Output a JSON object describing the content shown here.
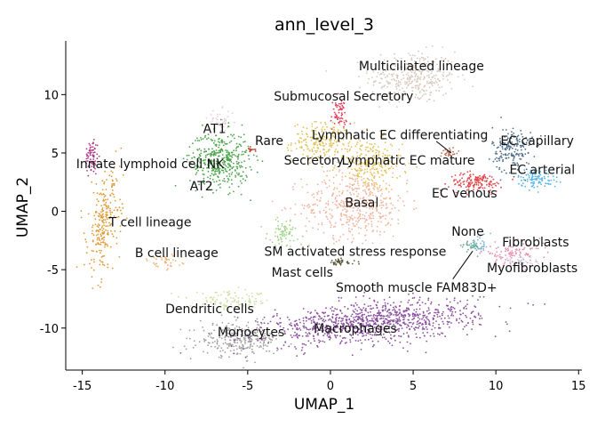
{
  "chart_data": {
    "type": "scatter",
    "title": "ann_level_3",
    "xlabel": "UMAP_1",
    "ylabel": "UMAP_2",
    "xlim": [
      -16,
      15.2
    ],
    "ylim": [
      -13.6,
      14.6
    ],
    "xticks": [
      -15,
      -10,
      -5,
      0,
      5,
      10,
      15
    ],
    "yticks": [
      -10,
      -5,
      0,
      5,
      10
    ],
    "xtick_labels": [
      "-15",
      "-10",
      "-5",
      "0",
      "5",
      "10",
      "15"
    ],
    "ytick_labels": [
      "-10",
      "-5",
      "0",
      "5",
      "10"
    ],
    "grid": false,
    "legend": "none",
    "clusters": [
      {
        "label": "Multiciliated lineage",
        "color": "#d8c9bc",
        "x": 5.0,
        "y": 11.5,
        "sx": 1.3,
        "sy": 1.1,
        "n": 350
      },
      {
        "label": "Submucosal Secretory",
        "color": "#e03b5a",
        "x": 0.5,
        "y": 8.3,
        "sx": 0.25,
        "sy": 0.7,
        "n": 60
      },
      {
        "label": "Secretory",
        "color": "#e3c25a",
        "x": -0.5,
        "y": 6.0,
        "sx": 0.9,
        "sy": 0.8,
        "n": 200
      },
      {
        "label": "Lymphatic EC mature",
        "color": "#e3c25a",
        "x": 2.3,
        "y": 4.0,
        "sx": 1.0,
        "sy": 1.1,
        "n": 250
      },
      {
        "label": "Lymphatic EC differentiating",
        "color": "#b8735a",
        "x": 7.2,
        "y": 5.0,
        "sx": 0.25,
        "sy": 0.25,
        "n": 30
      },
      {
        "label": "Basal",
        "color": "#f2b49f",
        "x": 1.5,
        "y": 0.5,
        "sx": 1.6,
        "sy": 1.4,
        "n": 450
      },
      {
        "label": "Rare",
        "color": "#c0392b",
        "x": -4.8,
        "y": 5.3,
        "sx": 0.12,
        "sy": 0.12,
        "n": 12
      },
      {
        "label": "AT1",
        "color": "#e8d0d8",
        "x": -6.6,
        "y": 7.7,
        "sx": 0.4,
        "sy": 0.5,
        "n": 40
      },
      {
        "label": "AT2",
        "color": "#4ca64c",
        "x": -6.7,
        "y": 4.4,
        "sx": 0.9,
        "sy": 1.2,
        "n": 400
      },
      {
        "label": "EC capillary",
        "color": "#4f6f8a",
        "x": 11.0,
        "y": 5.3,
        "sx": 0.6,
        "sy": 1.0,
        "n": 180
      },
      {
        "label": "EC arterial",
        "color": "#58b5e8",
        "x": 12.5,
        "y": 2.8,
        "sx": 0.6,
        "sy": 0.4,
        "n": 100
      },
      {
        "label": "EC venous",
        "color": "#e04848",
        "x": 8.8,
        "y": 2.5,
        "sx": 0.8,
        "sy": 0.4,
        "n": 150
      },
      {
        "label": "Innate lymphoid cell NK",
        "color": "#b03a8a",
        "x": -14.4,
        "y": 4.7,
        "sx": 0.2,
        "sy": 0.8,
        "n": 70
      },
      {
        "label": "T cell lineage",
        "color": "#e09a35",
        "x": -13.7,
        "y": -1.0,
        "sx": 0.45,
        "sy": 2.2,
        "n": 260
      },
      {
        "label": "B cell lineage",
        "color": "#f0b37a",
        "x": -10.2,
        "y": -4.3,
        "sx": 0.6,
        "sy": 0.3,
        "n": 40
      },
      {
        "label": "SM activated stress response",
        "color": "#9fd48a",
        "x": -2.8,
        "y": -1.8,
        "sx": 0.5,
        "sy": 0.6,
        "n": 70
      },
      {
        "label": "Mast cells",
        "color": "#5a5a3a",
        "x": 0.5,
        "y": -4.4,
        "sx": 0.5,
        "sy": 0.15,
        "n": 40
      },
      {
        "label": "None",
        "color": "#7fb6d6",
        "x": 9.0,
        "y": -2.8,
        "sx": 0.35,
        "sy": 0.4,
        "n": 40
      },
      {
        "label": "Fibroblasts",
        "color": "#e890b0",
        "x": 11.0,
        "y": -3.6,
        "sx": 0.9,
        "sy": 0.45,
        "n": 110
      },
      {
        "label": "Myofibroblasts",
        "color": "#cfcfe0",
        "x": 11.6,
        "y": -4.4,
        "sx": 0.6,
        "sy": 0.25,
        "n": 40
      },
      {
        "label": "Smooth muscle FAM83D+",
        "color": "#6aaa88",
        "x": 8.4,
        "y": -3.0,
        "sx": 0.3,
        "sy": 0.25,
        "n": 25
      },
      {
        "label": "Dendritic cells",
        "color": "#cce0a0",
        "x": -6.0,
        "y": -7.7,
        "sx": 1.2,
        "sy": 0.4,
        "n": 100
      },
      {
        "label": "Monocytes",
        "color": "#a0a0a0",
        "x": -5.5,
        "y": -11.0,
        "sx": 1.2,
        "sy": 0.7,
        "n": 280
      },
      {
        "label": "Macrophages",
        "color": "#8a4f9e",
        "x": 2.5,
        "y": -9.5,
        "sx": 3.2,
        "sy": 0.85,
        "n": 1000
      }
    ],
    "annotations": [
      {
        "text": "Multiciliated lineage",
        "x": 5.5,
        "y": 12.4
      },
      {
        "text": "Submucosal Secretory",
        "x": 0.8,
        "y": 9.8
      },
      {
        "text": "Lymphatic EC differentiating",
        "x": 4.2,
        "y": 6.5
      },
      {
        "text": "EC capillary",
        "x": 12.5,
        "y": 6.0
      },
      {
        "text": "AT1",
        "x": -7.0,
        "y": 7.0
      },
      {
        "text": "Rare",
        "x": -3.7,
        "y": 6.0
      },
      {
        "text": "Secretory",
        "x": -1.0,
        "y": 4.3
      },
      {
        "text": "Lymphatic EC mature",
        "x": 4.7,
        "y": 4.3
      },
      {
        "text": "Innate lymphoid cell NK",
        "x": -10.9,
        "y": 4.0
      },
      {
        "text": "EC arterial",
        "x": 12.8,
        "y": 3.5
      },
      {
        "text": "AT2",
        "x": -7.8,
        "y": 2.1
      },
      {
        "text": "EC venous",
        "x": 8.1,
        "y": 1.5
      },
      {
        "text": "Basal",
        "x": 1.9,
        "y": 0.7
      },
      {
        "text": "T cell lineage",
        "x": -10.9,
        "y": -1.0
      },
      {
        "text": "None",
        "x": 8.3,
        "y": -1.8
      },
      {
        "text": "Fibroblasts",
        "x": 12.4,
        "y": -2.7
      },
      {
        "text": "SM activated stress response",
        "x": 1.5,
        "y": -3.5
      },
      {
        "text": "B cell lineage",
        "x": -9.3,
        "y": -3.6
      },
      {
        "text": "Myofibroblasts",
        "x": 12.2,
        "y": -4.9
      },
      {
        "text": "Mast cells",
        "x": -1.7,
        "y": -5.3
      },
      {
        "text": "Smooth muscle FAM83D+",
        "x": 5.2,
        "y": -6.6
      },
      {
        "text": "Dendritic cells",
        "x": -7.3,
        "y": -8.4
      },
      {
        "text": "Macrophages",
        "x": 1.5,
        "y": -10.1
      },
      {
        "text": "Monocytes",
        "x": -4.8,
        "y": -10.4
      }
    ],
    "leader_lines": [
      {
        "from": [
          6.4,
          6.0
        ],
        "to": [
          7.3,
          5.0
        ]
      },
      {
        "from": [
          7.4,
          -5.8
        ],
        "to": [
          8.6,
          -3.4
        ]
      }
    ]
  }
}
